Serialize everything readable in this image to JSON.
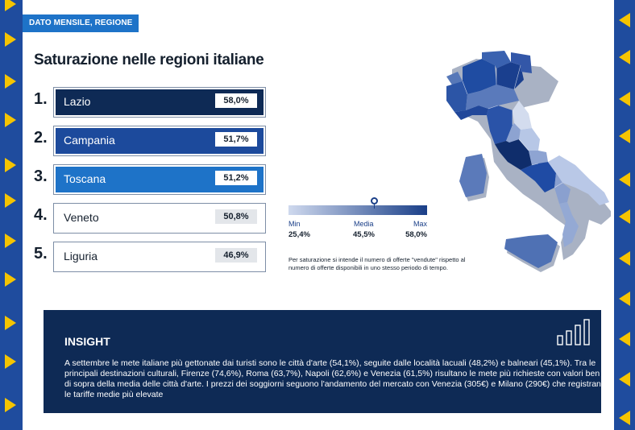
{
  "tag": "DATO MENSILE, REGIONE",
  "title": "Saturazione nelle regioni italiane",
  "colors": {
    "rank1": "#0e2a55",
    "rank2": "#1c4a9c",
    "rank3": "#1e73c8",
    "accent": "#f5c400",
    "border": "#1f4c9e"
  },
  "ranking": [
    {
      "rank": "1.",
      "region": "Lazio",
      "value": "58,0%"
    },
    {
      "rank": "2.",
      "region": "Campania",
      "value": "51,7%"
    },
    {
      "rank": "3.",
      "region": "Toscana",
      "value": "51,2%"
    },
    {
      "rank": "4.",
      "region": "Veneto",
      "value": "50,8%"
    },
    {
      "rank": "5.",
      "region": "Liguria",
      "value": "46,9%"
    }
  ],
  "legend": {
    "min_label": "Min",
    "mid_label": "Media",
    "max_label": "Max",
    "min_value": "25,4%",
    "mid_value": "45,5%",
    "max_value": "58,0%"
  },
  "note": "Per saturazione si intende il numero di offerte \"vendute\" rispetto al numero di offerte disponibili in uno stesso periodo di tempo.",
  "insight": {
    "title": "INSIGHT",
    "text": "A settembre le mete italiane più gettonate dai turisti sono le città d'arte (54,1%), seguite dalle località lacuali (48,2%) e balneari (45,1%). Tra le principali destinazioni culturali, Firenze (74,6%), Roma (63,7%), Napoli (62,6%) e Venezia (61,5%) risultano le mete più richieste con valori ben al di sopra della media delle città d'arte. I prezzi dei soggiorni seguono l'andamento del mercato con Venezia (305€) e Milano (290€) che registrano le tariffe medie più elevate",
    "icon": "bar-chart-icon"
  },
  "chart_data": {
    "type": "bar",
    "categories": [
      "Lazio",
      "Campania",
      "Toscana",
      "Veneto",
      "Liguria"
    ],
    "values": [
      58.0,
      51.7,
      51.2,
      50.8,
      46.9
    ],
    "title": "Saturazione nelle regioni italiane",
    "xlabel": "",
    "ylabel": "",
    "legend_range": {
      "min": 25.4,
      "mean": 45.5,
      "max": 58.0
    }
  }
}
